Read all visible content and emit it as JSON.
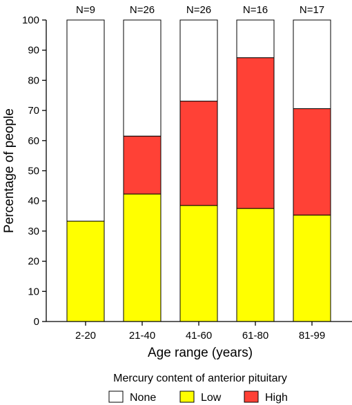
{
  "chart_data": {
    "type": "bar",
    "stacked": true,
    "categories": [
      "2-20",
      "21-40",
      "41-60",
      "61-80",
      "81-99"
    ],
    "top_annotations": [
      "N=9",
      "N=26",
      "N=26",
      "N=16",
      "N=17"
    ],
    "series": [
      {
        "name": "Low",
        "color": "#ffff00",
        "values": [
          33.3,
          42.3,
          38.5,
          37.5,
          35.3
        ]
      },
      {
        "name": "High",
        "color": "#ff4136",
        "values": [
          0,
          19.2,
          34.6,
          50.0,
          35.3
        ]
      },
      {
        "name": "None",
        "color": "#ffffff",
        "values": [
          66.7,
          38.5,
          26.9,
          12.5,
          29.4
        ]
      }
    ],
    "xlabel": "Age range (years)",
    "ylabel": "Percentage of people",
    "ylim": [
      0,
      100
    ],
    "yticks": [
      0,
      10,
      20,
      30,
      40,
      50,
      60,
      70,
      80,
      90,
      100
    ],
    "grid": false,
    "legend": {
      "title": "Mercury content of anterior pituitary",
      "placement": "bottom",
      "order": [
        "None",
        "Low",
        "High"
      ]
    }
  }
}
